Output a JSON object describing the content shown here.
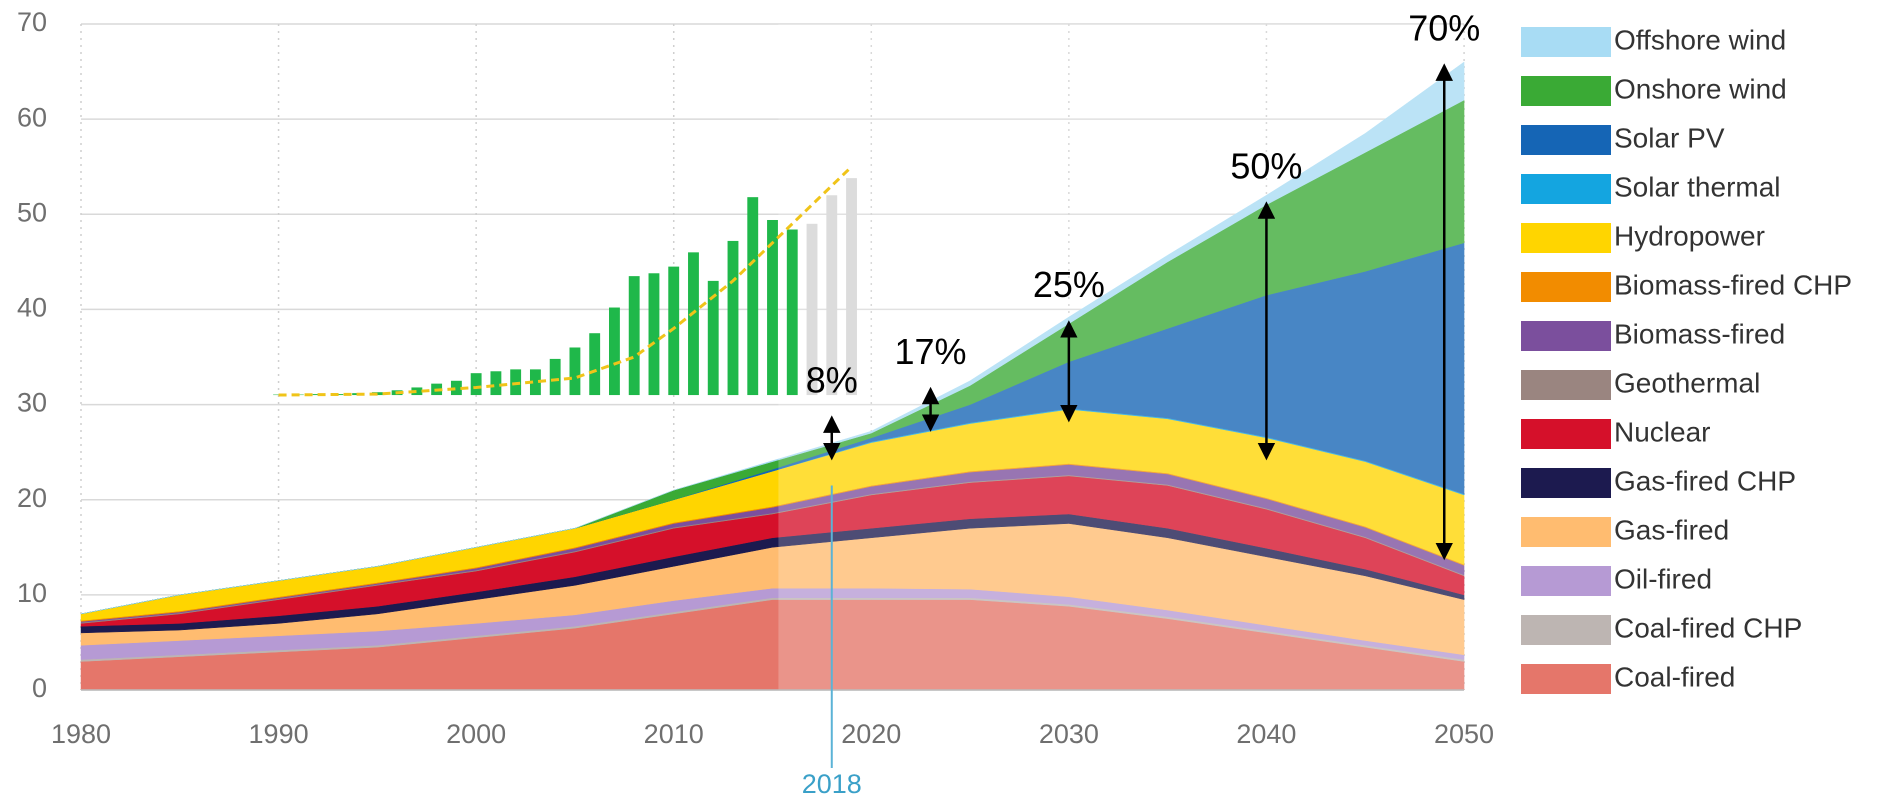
{
  "chart_data": {
    "type": "stacked_area",
    "x": [
      1980,
      1985,
      1990,
      1995,
      2000,
      2005,
      2010,
      2015,
      2020,
      2025,
      2030,
      2035,
      2040,
      2045,
      2050
    ],
    "xlim": [
      1980,
      2050
    ],
    "xticks": [
      1980,
      1990,
      2000,
      2010,
      2020,
      2030,
      2040,
      2050
    ],
    "ylim": [
      0,
      70
    ],
    "yticks": [
      0,
      10,
      20,
      30,
      40,
      50,
      60,
      70
    ],
    "grid": true,
    "legend": "right",
    "series": [
      {
        "name": "Coal-fired",
        "color": "#e5766a",
        "values": [
          3,
          3.5,
          4,
          4.5,
          5.5,
          6.5,
          8,
          9.5,
          9.5,
          9.5,
          8.8,
          7.5,
          6,
          4.5,
          3
        ]
      },
      {
        "name": "Coal-fired CHP",
        "color": "#bdb5b2",
        "values": [
          0.2,
          0.2,
          0.2,
          0.2,
          0.2,
          0.2,
          0.2,
          0.2,
          0.2,
          0.2,
          0.2,
          0.2,
          0.2,
          0.2,
          0.2
        ]
      },
      {
        "name": "Oil-fired",
        "color": "#b69ad4",
        "values": [
          1.5,
          1.5,
          1.5,
          1.5,
          1.3,
          1.2,
          1.2,
          1,
          1,
          0.9,
          0.8,
          0.7,
          0.6,
          0.5,
          0.5
        ]
      },
      {
        "name": "Gas-fired",
        "color": "#ffbc70",
        "values": [
          1.3,
          1.1,
          1.3,
          1.8,
          2.5,
          3.1,
          3.6,
          4.3,
          5.3,
          6.4,
          7.7,
          7.6,
          7.2,
          6.8,
          5.8
        ]
      },
      {
        "name": "Gas-fired CHP",
        "color": "#1c1a4f",
        "values": [
          0.7,
          0.7,
          0.8,
          0.8,
          0.8,
          0.9,
          1,
          1,
          1,
          1,
          1,
          1,
          0.9,
          0.7,
          0.5
        ]
      },
      {
        "name": "Nuclear",
        "color": "#d5102a",
        "values": [
          0.3,
          1,
          1.7,
          2.2,
          2.2,
          2.6,
          3,
          2.5,
          3.5,
          3.8,
          4,
          4.5,
          4.1,
          3.3,
          2
        ]
      },
      {
        "name": "Geothermal",
        "color": "#9a8580",
        "values": [
          0.1,
          0.1,
          0.1,
          0.1,
          0.1,
          0.1,
          0.1,
          0.1,
          0.1,
          0.1,
          0.1,
          0.1,
          0.1,
          0.1,
          0.1
        ]
      },
      {
        "name": "Biomass-fired",
        "color": "#7b4f9d",
        "values": [
          0.1,
          0.1,
          0.1,
          0.1,
          0.2,
          0.3,
          0.4,
          0.6,
          0.8,
          1,
          1.1,
          1.1,
          1,
          1,
          1
        ]
      },
      {
        "name": "Biomass-fired CHP",
        "color": "#f28c00",
        "values": [
          0.1,
          0.1,
          0.1,
          0.1,
          0.1,
          0.1,
          0.1,
          0.1,
          0.1,
          0.1,
          0.1,
          0.1,
          0.1,
          0.1,
          0.1
        ]
      },
      {
        "name": "Hydropower",
        "color": "#ffd500",
        "values": [
          0.7,
          1.7,
          1.7,
          1.7,
          2.1,
          2,
          2.4,
          3.7,
          4.5,
          5,
          5.7,
          5.7,
          6.3,
          6.8,
          7.3
        ]
      },
      {
        "name": "Solar thermal",
        "color": "#14a5e0",
        "values": [
          0,
          0,
          0,
          0,
          0,
          0,
          0,
          0,
          0.1,
          0.1,
          0.1,
          0.1,
          0.1,
          0.1,
          0.1
        ]
      },
      {
        "name": "Solar PV",
        "color": "#1565b5",
        "values": [
          0,
          0,
          0,
          0,
          0,
          0,
          0,
          0.2,
          0.4,
          1.9,
          4.9,
          9.4,
          14.9,
          19.9,
          26.4
        ]
      },
      {
        "name": "Onshore wind",
        "color": "#3aaa35",
        "values": [
          0,
          0,
          0,
          0,
          0,
          0,
          1,
          0.8,
          0.5,
          2,
          4,
          7,
          9.5,
          12.5,
          15
        ]
      },
      {
        "name": "Offshore wind",
        "color": "#a8dcf4",
        "values": [
          0,
          0,
          0,
          0,
          0,
          0,
          0,
          0.1,
          0.2,
          0.5,
          0.7,
          0.7,
          1,
          2,
          4
        ]
      }
    ],
    "marker_year": 2018,
    "annotations": [
      {
        "label": "8%",
        "x": 2018,
        "y0": 24.5,
        "y1": 28.5
      },
      {
        "label": "17%",
        "x": 2023,
        "y0": 27.5,
        "y1": 31.5
      },
      {
        "label": "25%",
        "x": 2030,
        "y0": 28.5,
        "y1": 38.5
      },
      {
        "label": "50%",
        "x": 2040,
        "y0": 24.5,
        "y1": 51
      },
      {
        "label": "70%",
        "x": 2049,
        "y0": 14,
        "y1": 65.5
      }
    ],
    "inset": {
      "base": 31,
      "x": [
        1990,
        1991,
        1992,
        1993,
        1994,
        1995,
        1996,
        1997,
        1998,
        1999,
        2000,
        2001,
        2002,
        2003,
        2004,
        2005,
        2006,
        2007,
        2008,
        2009,
        2010,
        2011,
        2012,
        2013,
        2014,
        2015,
        2016,
        2017,
        2018,
        2019
      ],
      "series": [
        {
          "color": "#1fb84a",
          "values": [
            31.05,
            31.05,
            31.1,
            31.1,
            31.2,
            31.3,
            31.5,
            31.8,
            32.2,
            32.5,
            33.3,
            33.5,
            33.7,
            33.7,
            34.8,
            36,
            37.5,
            40.2,
            43.5,
            43.8,
            44.5,
            46,
            43,
            47.2,
            51.8,
            49.4,
            48.4,
            null,
            null,
            null
          ]
        },
        {
          "color": "#dcdcdc",
          "values": [
            null,
            null,
            null,
            null,
            null,
            null,
            null,
            null,
            null,
            null,
            null,
            null,
            null,
            null,
            null,
            null,
            null,
            null,
            null,
            null,
            null,
            null,
            null,
            null,
            null,
            null,
            null,
            49,
            52,
            53.8
          ]
        }
      ],
      "trend": {
        "color": "#f0c419",
        "x": [
          1990,
          1995,
          2000,
          2005,
          2008,
          2010,
          2013,
          2016,
          2019
        ],
        "values": [
          31,
          31.1,
          31.8,
          32.8,
          35,
          38,
          43,
          49,
          55
        ]
      }
    }
  }
}
